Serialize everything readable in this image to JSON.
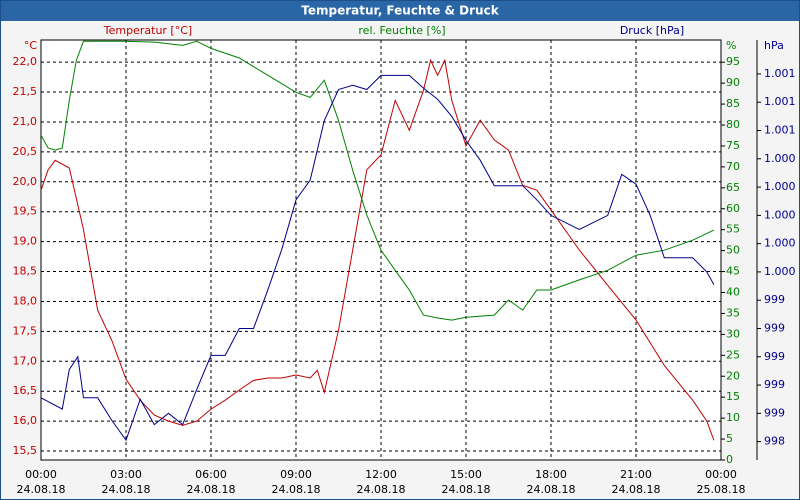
{
  "chart_data": {
    "type": "line",
    "title": "Temperatur, Feuchte & Druck",
    "y_unit": "°C",
    "y2_unit": "%",
    "y3_unit": "hPa",
    "xlim": [
      0,
      24
    ],
    "xticks": [
      {
        "value": 0,
        "label": "00:00"
      },
      {
        "value": 3,
        "label": "03:00"
      },
      {
        "value": 6,
        "label": "06:00"
      },
      {
        "value": 9,
        "label": "09:00"
      },
      {
        "value": 12,
        "label": "12:00"
      },
      {
        "value": 15,
        "label": "15:00"
      },
      {
        "value": 18,
        "label": "18:00"
      },
      {
        "value": 21,
        "label": "21:00"
      },
      {
        "value": 24,
        "label": "00:00"
      }
    ],
    "xtick_dates": [
      "24.08.18",
      "24.08.18",
      "24.08.18",
      "24.08.18",
      "24.08.18",
      "24.08.18",
      "24.08.18",
      "24.08.18",
      "25.08.18"
    ],
    "ylim": [
      15.35,
      22.37
    ],
    "yticks": [
      {
        "value": 15.5,
        "label": "15,5"
      },
      {
        "value": 16,
        "label": "16,0"
      },
      {
        "value": 16.5,
        "label": "16,5"
      },
      {
        "value": 17,
        "label": "17,0"
      },
      {
        "value": 17.5,
        "label": "17,5"
      },
      {
        "value": 18,
        "label": "18,0"
      },
      {
        "value": 18.5,
        "label": "18,5"
      },
      {
        "value": 19,
        "label": "19,0"
      },
      {
        "value": 19.5,
        "label": "19,5"
      },
      {
        "value": 20,
        "label": "20,0"
      },
      {
        "value": 20.5,
        "label": "20,5"
      },
      {
        "value": 21,
        "label": "21,0"
      },
      {
        "value": 21.5,
        "label": "21,5"
      },
      {
        "value": 22,
        "label": "22,0"
      }
    ],
    "y2lim": [
      0,
      100.3
    ],
    "y2ticks": [
      0,
      5,
      10,
      15,
      20,
      25,
      30,
      35,
      40,
      45,
      50,
      55,
      60,
      65,
      70,
      75,
      80,
      85,
      90,
      95
    ],
    "y3lim": [
      998.27,
      1001.24
    ],
    "y3ticks": [
      {
        "value": 998.4,
        "label": "998"
      },
      {
        "value": 998.6,
        "label": "999"
      },
      {
        "value": 998.8,
        "label": "999"
      },
      {
        "value": 999.0,
        "label": "999"
      },
      {
        "value": 999.2,
        "label": "999"
      },
      {
        "value": 999.4,
        "label": "999"
      },
      {
        "value": 999.6,
        "label": "1.000"
      },
      {
        "value": 999.8,
        "label": "1.000"
      },
      {
        "value": 1000.0,
        "label": "1.000"
      },
      {
        "value": 1000.2,
        "label": "1.000"
      },
      {
        "value": 1000.4,
        "label": "1.000"
      },
      {
        "value": 1000.6,
        "label": "1.001"
      },
      {
        "value": 1000.8,
        "label": "1.001"
      },
      {
        "value": 1001.0,
        "label": "1.001"
      }
    ],
    "grid": true,
    "series": [
      {
        "name": "Temperatur [°C]",
        "color": "#c00000",
        "axis": "y",
        "x": [
          0,
          0.25,
          0.5,
          1,
          1.5,
          2,
          2.5,
          3,
          3.5,
          4,
          4.5,
          5,
          5.5,
          6,
          6.5,
          7,
          7.5,
          8,
          8.5,
          9,
          9.5,
          9.75,
          10,
          10.25,
          10.5,
          11,
          11.5,
          12,
          12.5,
          13,
          13.5,
          13.75,
          14,
          14.25,
          14.5,
          15,
          15.5,
          16,
          16.5,
          17,
          17.5,
          18,
          19,
          20,
          21,
          22,
          23,
          23.5,
          23.75
        ],
        "values": [
          19.86,
          20.2,
          20.36,
          20.23,
          19.2,
          17.85,
          17.35,
          16.7,
          16.35,
          16.1,
          16.0,
          15.93,
          16.0,
          16.2,
          16.35,
          16.52,
          16.68,
          16.72,
          16.72,
          16.77,
          16.72,
          16.85,
          16.48,
          17.0,
          17.52,
          18.86,
          20.2,
          20.45,
          21.36,
          20.86,
          21.53,
          22.03,
          21.78,
          22.03,
          21.36,
          20.6,
          21.03,
          20.7,
          20.53,
          19.94,
          19.86,
          19.53,
          18.86,
          18.27,
          17.69,
          16.93,
          16.35,
          16.0,
          15.68
        ]
      },
      {
        "name": "rel. Feuchte [%]",
        "color": "#008000",
        "axis": "y2",
        "x": [
          0,
          0.25,
          0.5,
          0.75,
          1,
          1.25,
          1.5,
          2,
          3,
          4,
          5,
          5.5,
          6,
          7,
          8,
          9,
          9.5,
          10,
          10.5,
          11,
          11.5,
          12,
          12.5,
          13,
          13.5,
          14,
          14.5,
          15,
          16,
          16.5,
          17,
          17.5,
          18,
          19,
          20,
          21,
          22,
          23,
          23.75
        ],
        "values": [
          77.6,
          74.5,
          74,
          74.5,
          85.9,
          95.5,
          100,
          100,
          100,
          99.8,
          99,
          100,
          98.3,
          96,
          91.9,
          87.8,
          86.6,
          90.7,
          81.1,
          69.2,
          58.5,
          50.1,
          45.3,
          40.6,
          34.6,
          33.9,
          33.4,
          34.1,
          34.6,
          38.2,
          35.8,
          40.6,
          40.6,
          43,
          45.3,
          48.9,
          50.1,
          52.5,
          54.9
        ]
      },
      {
        "name": "Druck [hPa]",
        "color": "#00008b",
        "axis": "y3",
        "x": [
          0,
          0.75,
          1,
          1.3,
          1.5,
          2,
          2.5,
          3,
          3.5,
          4,
          4.5,
          5,
          5.5,
          6,
          6.5,
          7,
          7.5,
          8,
          8.5,
          9,
          9.5,
          10,
          10.5,
          11,
          11.5,
          12,
          12.5,
          13,
          13.5,
          14,
          14.5,
          15,
          15.5,
          16,
          16.5,
          17,
          17.5,
          18,
          19,
          20,
          20.5,
          21,
          21.5,
          22,
          23,
          23.5,
          23.75
        ],
        "values": [
          998.71,
          998.63,
          998.91,
          999.0,
          998.71,
          998.71,
          998.55,
          998.41,
          998.7,
          998.52,
          998.6,
          998.52,
          998.77,
          999.01,
          999.01,
          999.2,
          999.2,
          999.47,
          999.76,
          1000.11,
          1000.25,
          1000.67,
          1000.89,
          1000.92,
          1000.89,
          1000.99,
          1000.99,
          1000.99,
          1000.9,
          1000.82,
          1000.7,
          1000.53,
          1000.39,
          1000.21,
          1000.21,
          1000.21,
          1000.11,
          1000.0,
          999.9,
          1000.0,
          1000.29,
          1000.22,
          1000.0,
          999.7,
          999.7,
          999.6,
          999.51
        ]
      }
    ]
  }
}
